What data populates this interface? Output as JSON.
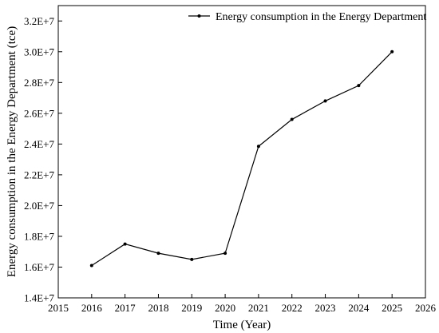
{
  "chart_data": {
    "type": "line",
    "title": "",
    "xlabel": "Time (Year)",
    "ylabel": "Energy consumption in the Energy Department (tce)",
    "xlim": [
      2015,
      2026
    ],
    "ylim": [
      14000000,
      33000000
    ],
    "x_ticks": [
      2015,
      2016,
      2017,
      2018,
      2019,
      2020,
      2021,
      2022,
      2023,
      2024,
      2025,
      2026
    ],
    "y_ticks": [
      14000000,
      16000000,
      18000000,
      20000000,
      22000000,
      24000000,
      26000000,
      28000000,
      30000000,
      32000000
    ],
    "y_tick_labels": [
      "1.4E+7",
      "1.6E+7",
      "1.8E+7",
      "2.0E+7",
      "2.2E+7",
      "2.4E+7",
      "2.6E+7",
      "2.8E+7",
      "3.0E+7",
      "3.2E+7"
    ],
    "grid": false,
    "legend_position": "top-right",
    "series": [
      {
        "name": "Energy consumption in the Energy Department",
        "color": "#000000",
        "marker": "circle",
        "x": [
          2016,
          2017,
          2018,
          2019,
          2020,
          2021,
          2022,
          2023,
          2024,
          2025
        ],
        "y": [
          16100000,
          17500000,
          16900000,
          16500000,
          16900000,
          23850000,
          25600000,
          26800000,
          27800000,
          30000000
        ]
      }
    ]
  }
}
